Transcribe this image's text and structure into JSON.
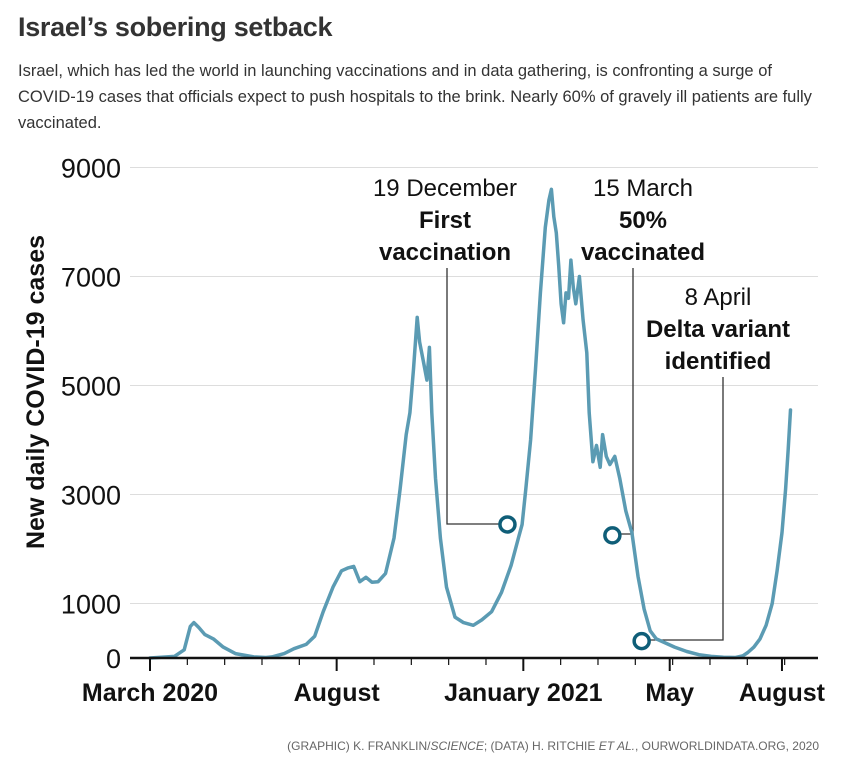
{
  "header": {
    "title": "Israel’s sobering setback",
    "subtitle": "Israel, which has led the world in launching vaccinations and in data gathering, is confronting a surge of COVID-19 cases that officials expect to push hospitals to the brink. Nearly 60% of gravely ill patients are fully vaccinated."
  },
  "footer": {
    "credit_graphic": "(GRAPHIC) K. FRANKLIN/",
    "credit_publication": "SCIENCE",
    "credit_data_prefix": "; (DATA) H. RITCHIE ",
    "credit_et_al": "ET AL.",
    "credit_data_suffix": ", OURWORLDINDATA.ORG, 2020"
  },
  "colors": {
    "line": "#5b9bb3",
    "marker": "#0f5e78",
    "grid": "#dddddd",
    "axis": "#111111"
  },
  "chart_data": {
    "type": "line",
    "title": "Israel’s sobering setback",
    "xlabel": "",
    "ylabel": "New daily COVID-19 cases",
    "ylim": [
      0,
      9000
    ],
    "yticks": [
      0,
      1000,
      3000,
      5000,
      7000,
      9000
    ],
    "xlim": [
      0,
      530
    ],
    "xtick_labels": [
      {
        "label": "March 2020",
        "day": 0
      },
      {
        "label": "August",
        "day": 153
      },
      {
        "label": "January 2021",
        "day": 306
      },
      {
        "label": "May",
        "day": 426
      },
      {
        "label": "August",
        "day": 518
      }
    ],
    "series": [
      {
        "name": "New daily COVID-19 cases",
        "points": [
          [
            0,
            0
          ],
          [
            20,
            30
          ],
          [
            28,
            150
          ],
          [
            33,
            580
          ],
          [
            36,
            650
          ],
          [
            40,
            560
          ],
          [
            45,
            430
          ],
          [
            52,
            350
          ],
          [
            60,
            200
          ],
          [
            70,
            80
          ],
          [
            85,
            20
          ],
          [
            95,
            10
          ],
          [
            100,
            20
          ],
          [
            110,
            80
          ],
          [
            118,
            170
          ],
          [
            128,
            250
          ],
          [
            135,
            400
          ],
          [
            142,
            850
          ],
          [
            150,
            1300
          ],
          [
            157,
            1600
          ],
          [
            162,
            1650
          ],
          [
            167,
            1680
          ],
          [
            172,
            1400
          ],
          [
            177,
            1480
          ],
          [
            182,
            1390
          ],
          [
            187,
            1400
          ],
          [
            193,
            1550
          ],
          [
            200,
            2200
          ],
          [
            205,
            3100
          ],
          [
            210,
            4100
          ],
          [
            213,
            4500
          ],
          [
            216,
            5300
          ],
          [
            219,
            6250
          ],
          [
            221,
            5800
          ],
          [
            224,
            5450
          ],
          [
            227,
            5100
          ],
          [
            229,
            5700
          ],
          [
            231,
            4500
          ],
          [
            234,
            3300
          ],
          [
            238,
            2200
          ],
          [
            243,
            1300
          ],
          [
            250,
            750
          ],
          [
            257,
            650
          ],
          [
            265,
            600
          ],
          [
            272,
            700
          ],
          [
            280,
            850
          ],
          [
            288,
            1200
          ],
          [
            296,
            1700
          ],
          [
            302,
            2200
          ],
          [
            305,
            2450
          ],
          [
            308,
            3100
          ],
          [
            312,
            4000
          ],
          [
            316,
            5300
          ],
          [
            320,
            6700
          ],
          [
            324,
            7900
          ],
          [
            327,
            8400
          ],
          [
            329,
            8600
          ],
          [
            331,
            8100
          ],
          [
            333,
            7800
          ],
          [
            335,
            7200
          ],
          [
            337,
            6500
          ],
          [
            339,
            6150
          ],
          [
            341,
            6700
          ],
          [
            343,
            6600
          ],
          [
            345,
            7300
          ],
          [
            347,
            6800
          ],
          [
            349,
            6500
          ],
          [
            352,
            7000
          ],
          [
            355,
            6200
          ],
          [
            358,
            5600
          ],
          [
            360,
            4500
          ],
          [
            363,
            3600
          ],
          [
            366,
            3900
          ],
          [
            369,
            3500
          ],
          [
            371,
            4100
          ],
          [
            374,
            3700
          ],
          [
            377,
            3550
          ],
          [
            381,
            3700
          ],
          [
            385,
            3300
          ],
          [
            390,
            2700
          ],
          [
            395,
            2300
          ],
          [
            400,
            1500
          ],
          [
            405,
            900
          ],
          [
            410,
            500
          ],
          [
            415,
            350
          ],
          [
            420,
            300
          ],
          [
            425,
            250
          ],
          [
            430,
            200
          ],
          [
            440,
            120
          ],
          [
            450,
            60
          ],
          [
            460,
            30
          ],
          [
            470,
            15
          ],
          [
            480,
            10
          ],
          [
            486,
            40
          ],
          [
            490,
            100
          ],
          [
            495,
            200
          ],
          [
            500,
            350
          ],
          [
            505,
            600
          ],
          [
            510,
            1000
          ],
          [
            514,
            1600
          ],
          [
            518,
            2300
          ],
          [
            521,
            3100
          ],
          [
            523,
            3800
          ],
          [
            525,
            4550
          ]
        ]
      }
    ],
    "annotations": [
      {
        "date": "19 December",
        "label_lines": [
          "First",
          "vaccination"
        ],
        "day": 293,
        "value": 2450
      },
      {
        "date": "15 March",
        "label_lines": [
          "50%",
          "vaccinated"
        ],
        "day": 379,
        "value": 2250
      },
      {
        "date": "8 April",
        "label_lines": [
          "Delta variant",
          "identified"
        ],
        "day": 403,
        "value": 310
      }
    ]
  }
}
